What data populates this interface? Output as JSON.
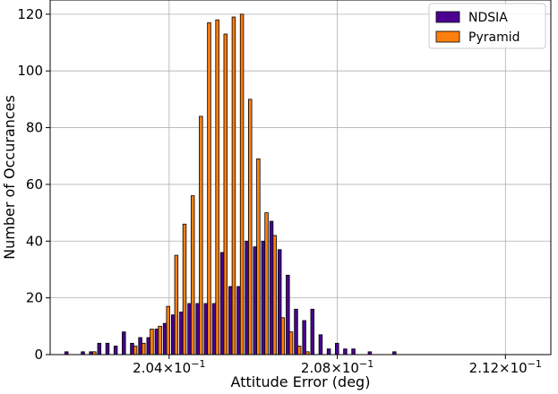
{
  "chart_data": {
    "type": "bar",
    "title": "",
    "xlabel": "Attitude Error (deg)",
    "ylabel": "Number of Occurances",
    "ylim": [
      0,
      125
    ],
    "y_ticks": [
      "0",
      "20",
      "40",
      "60",
      "80",
      "100",
      "120"
    ],
    "y_tick_values": [
      0,
      20,
      40,
      60,
      80,
      100,
      120
    ],
    "x_ticks": [
      {
        "mantissa": "2.04",
        "times": "×",
        "base": "10",
        "exp": "−1",
        "value": 0.204
      },
      {
        "mantissa": "2.08",
        "times": "×",
        "base": "10",
        "exp": "−1",
        "value": 0.208
      },
      {
        "mantissa": "2.12",
        "times": "×",
        "base": "10",
        "exp": "−1",
        "value": 0.212
      }
    ],
    "xlim": [
      0.20117,
      0.21308
    ],
    "grid": true,
    "legend_position": "top-right",
    "bin_edges_start": 0.2015,
    "bin_width": 0.000195,
    "series": [
      {
        "name": "NDSIA",
        "color": "#4b0092",
        "values": [
          1,
          0,
          1,
          1,
          4,
          4,
          3,
          8,
          4,
          6,
          6,
          9,
          11,
          14,
          15,
          18,
          18,
          18,
          18,
          36,
          24,
          24,
          40,
          38,
          40,
          47,
          37,
          28,
          16,
          12,
          16,
          7,
          2,
          4,
          2,
          2,
          0,
          1,
          0,
          0,
          1
        ]
      },
      {
        "name": "Pyramid",
        "color": "#ff7f0e",
        "values": [
          0,
          0,
          0,
          1,
          0,
          0,
          0,
          0,
          3,
          4,
          9,
          10,
          17,
          35,
          46,
          56,
          84,
          117,
          118,
          113,
          119,
          120,
          90,
          69,
          50,
          42,
          13,
          8,
          3,
          1,
          0,
          0,
          0,
          0,
          0,
          0,
          0,
          0,
          0,
          0,
          0
        ]
      }
    ]
  }
}
